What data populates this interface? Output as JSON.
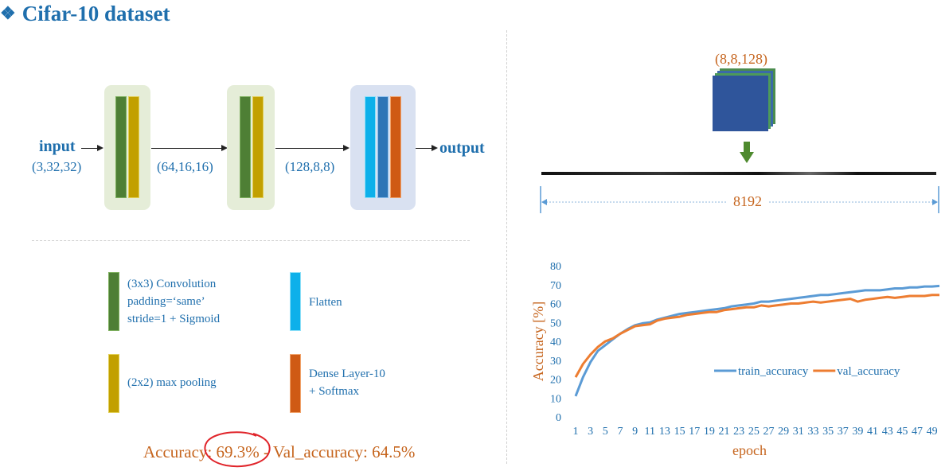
{
  "title": "Cifar-10 dataset",
  "title_glyph": "❖",
  "pipeline": {
    "input_label": "input",
    "input_dims": "(3,32,32)",
    "dims_after_block1": "(64,16,16)",
    "dims_after_block2": "(128,8,8)",
    "output_label": "output"
  },
  "legend": {
    "conv": "(3x3) Convolution\npadding=‘same’\nstride=1 + Sigmoid",
    "flatten": "Flatten",
    "pool": "(2x2) max pooling",
    "dense": "Dense Layer-10\n+ Softmax"
  },
  "accuracy_line": {
    "prefix": "Accuracy: ",
    "train_value": "69.3%",
    "middle": " - Val_accuracy: ",
    "val_value": "64.5%"
  },
  "flatten_diagram": {
    "tensor_label": "(8,8,128)",
    "vector_length": "8192"
  },
  "colors": {
    "title_blue": "#1f6fad",
    "orange": "#c6651e",
    "conv_green": "#4e7f35",
    "pool_yellow": "#c2a000",
    "flatten_cyan": "#0db0ea",
    "dense_orange": "#cf5a14",
    "train_series": "#5b9bd5",
    "val_series": "#ed7d31",
    "annotation_red": "#e0242a"
  },
  "chart_data": {
    "type": "line",
    "title": "",
    "xlabel": "epoch",
    "ylabel": "Accuracy [%]",
    "ylim": [
      0,
      80
    ],
    "yticks": [
      0,
      10,
      20,
      30,
      40,
      50,
      60,
      70,
      80
    ],
    "x": [
      1,
      2,
      3,
      4,
      5,
      6,
      7,
      8,
      9,
      10,
      11,
      12,
      13,
      14,
      15,
      16,
      17,
      18,
      19,
      20,
      21,
      22,
      23,
      24,
      25,
      26,
      27,
      28,
      29,
      30,
      31,
      32,
      33,
      34,
      35,
      36,
      37,
      38,
      39,
      40,
      41,
      42,
      43,
      44,
      45,
      46,
      47,
      48,
      49,
      50
    ],
    "xtick_labels": [
      "1",
      "3",
      "5",
      "7",
      "9",
      "11",
      "13",
      "15",
      "17",
      "19",
      "21",
      "23",
      "25",
      "27",
      "29",
      "31",
      "33",
      "35",
      "37",
      "39",
      "41",
      "43",
      "45",
      "47",
      "49"
    ],
    "legend_position": "inside-middle",
    "grid": false,
    "series": [
      {
        "name": "train_accuracy",
        "color": "#5b9bd5",
        "values": [
          11,
          21,
          29,
          35,
          38,
          41,
          44,
          46.5,
          48.5,
          49.5,
          50,
          51.5,
          52.5,
          53.5,
          54.5,
          55,
          55.5,
          56,
          56.5,
          57,
          57.5,
          58.5,
          59,
          59.5,
          60,
          61,
          61,
          61.5,
          62,
          62.5,
          63,
          63.5,
          64,
          64.5,
          64.5,
          65,
          65.5,
          66,
          66.5,
          67,
          67,
          67,
          67.5,
          68,
          68,
          68.5,
          68.5,
          69,
          69,
          69.3
        ]
      },
      {
        "name": "val_accuracy",
        "color": "#ed7d31",
        "values": [
          21,
          28,
          33,
          37,
          40,
          41.5,
          44,
          46,
          48,
          48.5,
          49,
          51,
          52,
          52.5,
          53,
          54,
          54.5,
          55,
          55.5,
          55.5,
          56.5,
          57,
          57.5,
          58,
          58,
          59,
          58.5,
          59,
          59.5,
          60,
          60,
          60.5,
          61,
          60.5,
          61,
          61.5,
          62,
          62.5,
          61,
          62,
          62.5,
          63,
          63.5,
          63,
          63.5,
          64,
          64,
          64,
          64.5,
          64.5
        ]
      }
    ]
  }
}
